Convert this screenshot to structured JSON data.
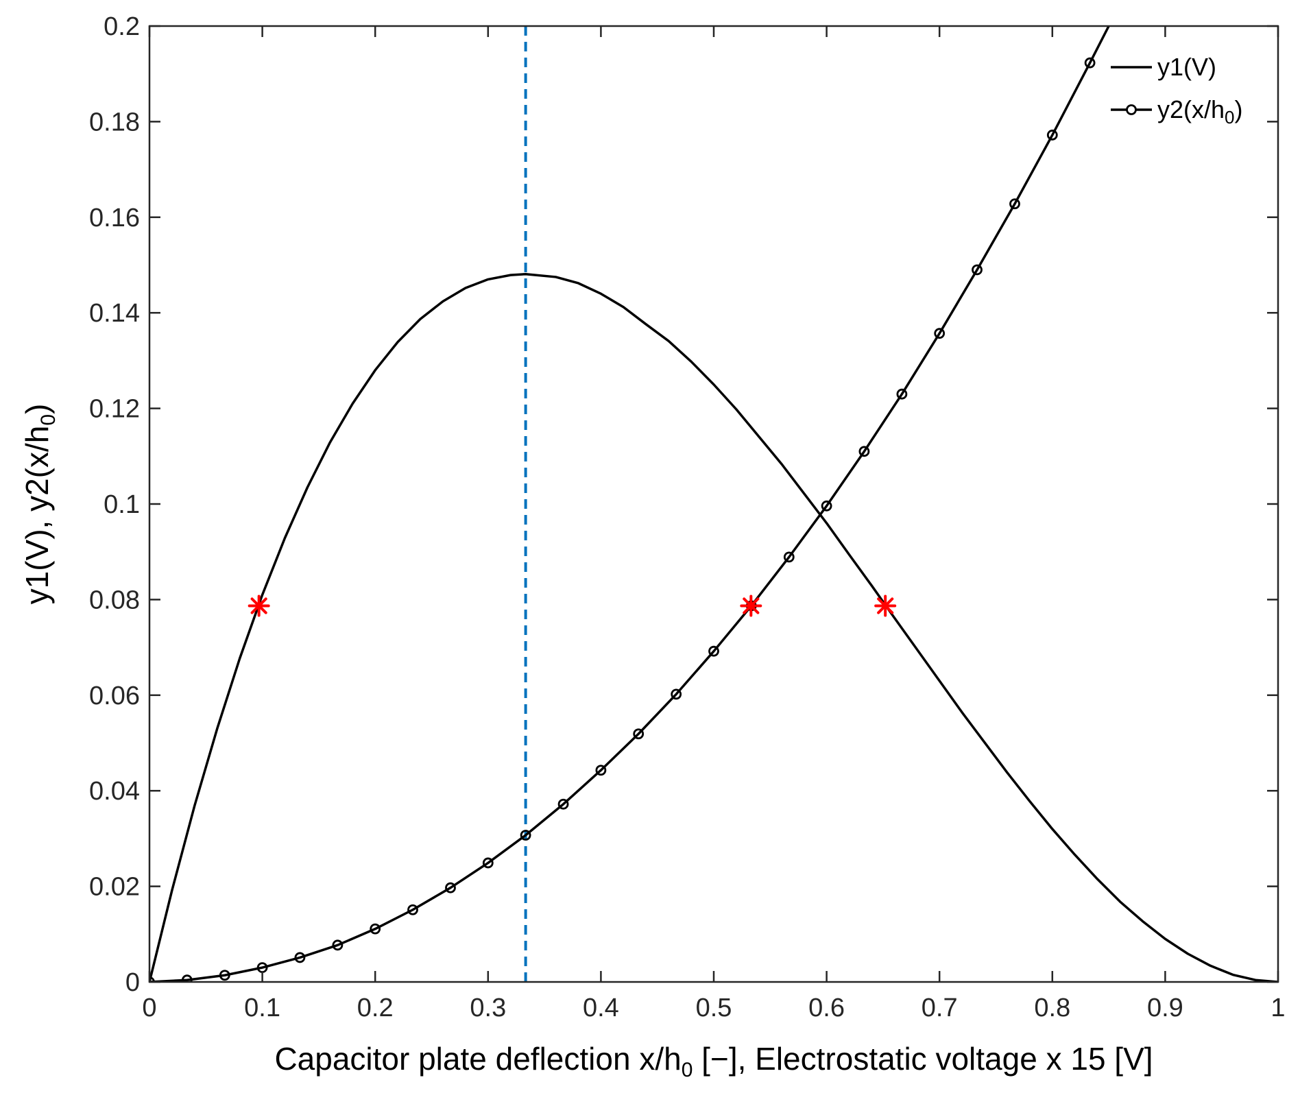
{
  "chart_data": {
    "type": "line",
    "title": "",
    "xlabel": {
      "main": "Capacitor plate deflection x/h",
      "sub": "0",
      "rest": " [−], Electrostatic voltage x 15 [V]"
    },
    "ylabel": {
      "main": "y1(V), y2(x/h",
      "sub": "0",
      "rest": ")"
    },
    "xlim": [
      0,
      1
    ],
    "ylim": [
      0,
      0.2
    ],
    "xticks": [
      0,
      0.1,
      0.2,
      0.3,
      0.4,
      0.5,
      0.6,
      0.7,
      0.8,
      0.9,
      1
    ],
    "xtick_labels": [
      "0",
      "0.1",
      "0.2",
      "0.3",
      "0.4",
      "0.5",
      "0.6",
      "0.7",
      "0.8",
      "0.9",
      "1"
    ],
    "yticks": [
      0,
      0.02,
      0.04,
      0.06,
      0.08,
      0.1,
      0.12,
      0.14,
      0.16,
      0.18,
      0.2
    ],
    "ytick_labels": [
      "0",
      "0.02",
      "0.04",
      "0.06",
      "0.08",
      "0.1",
      "0.12",
      "0.14",
      "0.16",
      "0.18",
      "0.2"
    ],
    "grid": false,
    "legend_position": "top-right",
    "series": [
      {
        "name": "y1(V)",
        "legend": {
          "main": "y1(V)",
          "sub": "",
          "rest": ""
        },
        "style": "solid",
        "marker": "none",
        "x": [
          0,
          0.02,
          0.04,
          0.06,
          0.08,
          0.1,
          0.12,
          0.14,
          0.16,
          0.18,
          0.2,
          0.22,
          0.24,
          0.26,
          0.28,
          0.3,
          0.32,
          0.3333,
          0.36,
          0.38,
          0.4,
          0.42,
          0.44,
          0.46,
          0.48,
          0.5,
          0.52,
          0.54,
          0.56,
          0.58,
          0.6,
          0.62,
          0.64,
          0.66,
          0.68,
          0.7,
          0.72,
          0.74,
          0.76,
          0.78,
          0.8,
          0.82,
          0.84,
          0.86,
          0.88,
          0.9,
          0.92,
          0.94,
          0.96,
          0.98,
          1.0
        ],
        "values": [
          0,
          0.0192,
          0.0369,
          0.053,
          0.0677,
          0.081,
          0.0929,
          0.1035,
          0.1129,
          0.121,
          0.128,
          0.1339,
          0.1387,
          0.1424,
          0.1452,
          0.147,
          0.1479,
          0.1481,
          0.1475,
          0.1462,
          0.144,
          0.1412,
          0.1376,
          0.1341,
          0.1298,
          0.125,
          0.1198,
          0.1141,
          0.1084,
          0.1022,
          0.096,
          0.0894,
          0.0829,
          0.0762,
          0.0696,
          0.063,
          0.0564,
          0.0501,
          0.0438,
          0.0378,
          0.032,
          0.0266,
          0.0215,
          0.0168,
          0.0127,
          0.009,
          0.0059,
          0.0034,
          0.0015,
          0.0004,
          0
        ]
      },
      {
        "name": "y2(x/h0)",
        "legend": {
          "main": "y2(x/h",
          "sub": "0",
          "rest": ")"
        },
        "style": "solid",
        "marker": "circle",
        "x": [
          0,
          0.0333,
          0.0667,
          0.1,
          0.1333,
          0.1667,
          0.2,
          0.2333,
          0.2667,
          0.3,
          0.3333,
          0.3667,
          0.4,
          0.4333,
          0.4667,
          0.5,
          0.5333,
          0.5667,
          0.6,
          0.6333,
          0.6667,
          0.7,
          0.7333,
          0.7667,
          0.8,
          0.8333,
          0.85
        ],
        "values": [
          0,
          0.0004,
          0.0014,
          0.003,
          0.0051,
          0.0077,
          0.0111,
          0.0151,
          0.0197,
          0.0249,
          0.0307,
          0.0372,
          0.0443,
          0.0519,
          0.0602,
          0.0692,
          0.0787,
          0.0889,
          0.0996,
          0.111,
          0.123,
          0.1357,
          0.149,
          0.1628,
          0.1772,
          0.1923,
          0.2
        ],
        "marker_count": 26
      }
    ],
    "reference_lines": [
      {
        "orientation": "vertical",
        "x": 0.3333,
        "color": "#0072BD",
        "style": "dashed"
      }
    ],
    "annotations": [
      {
        "x": 0.097,
        "y": 0.0787,
        "marker": "asterisk",
        "color": "#FF0000"
      },
      {
        "x": 0.533,
        "y": 0.0787,
        "marker": "asterisk",
        "color": "#FF0000"
      },
      {
        "x": 0.652,
        "y": 0.0787,
        "marker": "asterisk",
        "color": "#FF0000"
      }
    ]
  },
  "colors": {
    "axes": "#262626",
    "line": "#000000",
    "reference": "#0072BD",
    "highlight": "#FF0000"
  }
}
